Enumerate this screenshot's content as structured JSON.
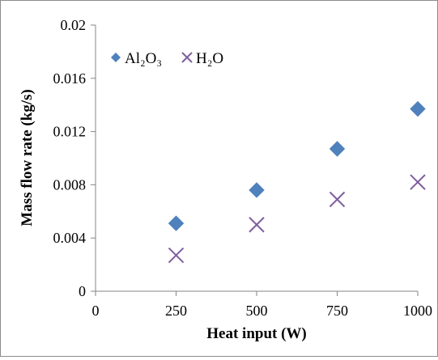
{
  "chart_data": {
    "type": "scatter",
    "title": "",
    "xlabel": "Heat input (W)",
    "ylabel": "Mass flow rate (kg/s)",
    "xlim": [
      0,
      1000
    ],
    "ylim": [
      0,
      0.02
    ],
    "x_ticks": [
      "0",
      "250",
      "500",
      "750",
      "1000"
    ],
    "y_ticks": [
      "0",
      "0.004",
      "0.008",
      "0.012",
      "0.016",
      "0.02"
    ],
    "grid": false,
    "legend_position": "top-left",
    "series": [
      {
        "name": "Al₂O₃",
        "marker": "diamond",
        "color": "#4f81bd",
        "points": [
          {
            "x": 250,
            "y": 0.0051
          },
          {
            "x": 500,
            "y": 0.0076
          },
          {
            "x": 750,
            "y": 0.0107
          },
          {
            "x": 1000,
            "y": 0.0137
          }
        ]
      },
      {
        "name": "H₂O",
        "marker": "x",
        "color": "#7f5f9f",
        "points": [
          {
            "x": 250,
            "y": 0.0027
          },
          {
            "x": 500,
            "y": 0.005
          },
          {
            "x": 750,
            "y": 0.0069
          },
          {
            "x": 1000,
            "y": 0.0082
          }
        ]
      }
    ]
  }
}
